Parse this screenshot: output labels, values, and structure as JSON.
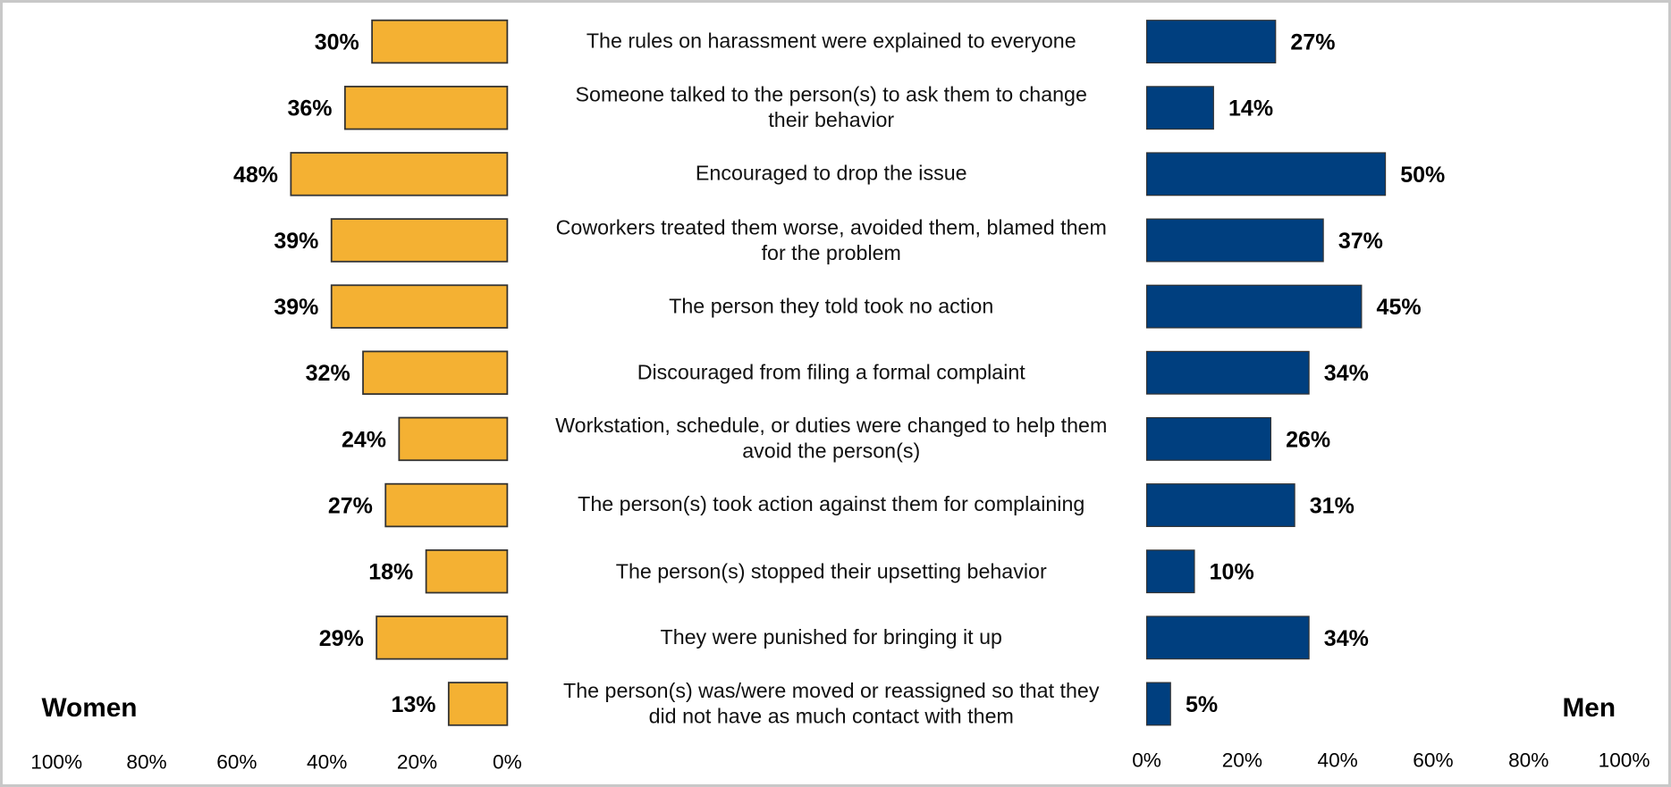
{
  "chart_data": {
    "type": "butterfly",
    "categories": [
      "The rules on harassment were explained to everyone",
      "Someone talked to the person(s) to ask them to change their behavior",
      "Encouraged to drop the issue",
      "Coworkers treated them worse, avoided them, blamed them for the problem",
      "The person they told took no action",
      "Discouraged from filing a formal complaint",
      "Workstation, schedule, or duties were changed to help them avoid the person(s)",
      "The person(s) took action against them for complaining",
      "The person(s) stopped their upsetting behavior",
      "They were punished for bringing it up",
      "The person(s) was/were moved or reassigned so that they did not have as much contact with them"
    ],
    "series": [
      {
        "name": "Women",
        "color": "#f4b133",
        "values": [
          30,
          36,
          48,
          39,
          39,
          32,
          24,
          27,
          18,
          29,
          13
        ],
        "value_labels": [
          "30%",
          "36%",
          "48%",
          "39%",
          "39%",
          "32%",
          "24%",
          "27%",
          "18%",
          "29%",
          "13%"
        ]
      },
      {
        "name": "Men",
        "color": "#003f7f",
        "values": [
          27,
          14,
          50,
          37,
          45,
          34,
          26,
          31,
          10,
          34,
          5
        ],
        "value_labels": [
          "27%",
          "14%",
          "50%",
          "37%",
          "45%",
          "34%",
          "26%",
          "31%",
          "10%",
          "34%",
          "5%"
        ]
      }
    ],
    "xlim": [
      0,
      100
    ],
    "xticks": [
      {
        "value": 0,
        "label": "0%"
      },
      {
        "value": 20,
        "label": "20%"
      },
      {
        "value": 40,
        "label": "40%"
      },
      {
        "value": 60,
        "label": "60%"
      },
      {
        "value": 80,
        "label": "80%"
      },
      {
        "value": 100,
        "label": "100%"
      }
    ]
  }
}
